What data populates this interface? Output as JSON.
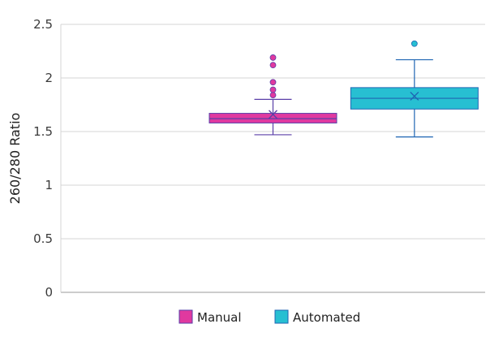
{
  "chart_data": {
    "type": "box",
    "ylabel": "260/280 Ratio",
    "ylim": [
      0,
      2.5
    ],
    "yticks": [
      0,
      0.5,
      1,
      1.5,
      2,
      2.5
    ],
    "ytick_labels": [
      "0",
      "0.5",
      "1",
      "1.5",
      "2",
      "2.5"
    ],
    "grid": true,
    "legend": "bottom",
    "series": [
      {
        "name": "Manual",
        "color": "#e0399f",
        "mean_marker_color": "#5a3fa8",
        "whisker_low": 1.47,
        "q1": 1.58,
        "median": 1.62,
        "q3": 1.67,
        "whisker_high": 1.8,
        "mean": 1.66,
        "outliers": [
          1.84,
          1.89,
          1.96,
          2.12,
          2.19
        ]
      },
      {
        "name": "Automated",
        "color": "#27bfd2",
        "mean_marker_color": "#1f66b3",
        "whisker_low": 1.45,
        "q1": 1.71,
        "median": 1.81,
        "q3": 1.91,
        "whisker_high": 2.17,
        "mean": 1.83,
        "outliers": [
          2.32
        ]
      }
    ]
  }
}
